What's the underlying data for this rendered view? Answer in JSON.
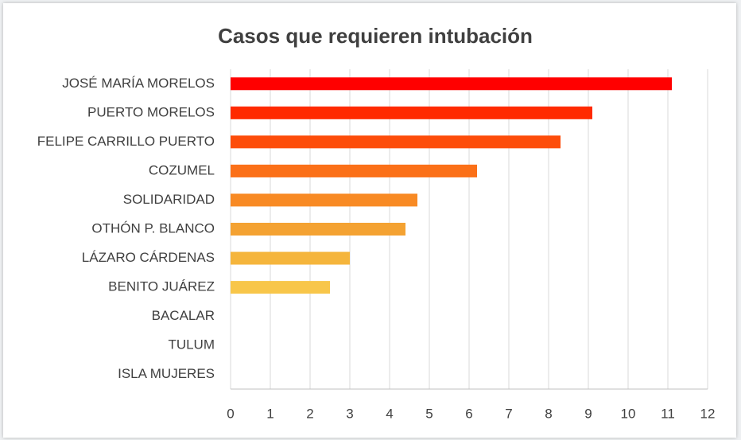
{
  "chart_data": {
    "type": "bar",
    "orientation": "horizontal",
    "title": "Casos que requieren intubación",
    "categories": [
      "JOSÉ MARÍA MORELOS",
      "PUERTO MORELOS",
      "FELIPE CARRILLO PUERTO",
      "COZUMEL",
      "SOLIDARIDAD",
      "OTHÓN P. BLANCO",
      "LÁZARO CÁRDENAS",
      "BENITO JUÁREZ",
      "BACALAR",
      "TULUM",
      "ISLA MUJERES"
    ],
    "values": [
      11.1,
      9.1,
      8.3,
      6.2,
      4.7,
      4.4,
      3,
      2.5,
      0,
      0,
      0
    ],
    "colors": [
      "#ff0000",
      "#ff2a00",
      "#fd4d0a",
      "#fb7018",
      "#f88a24",
      "#f4a232",
      "#f5b53c",
      "#f8c64a",
      "#f9d055",
      "#f9d860",
      "#fadf6a"
    ],
    "xlim": [
      0,
      12
    ],
    "xticks": [
      0,
      1,
      2,
      3,
      4,
      5,
      6,
      7,
      8,
      9,
      10,
      11,
      12
    ],
    "grid": true
  }
}
